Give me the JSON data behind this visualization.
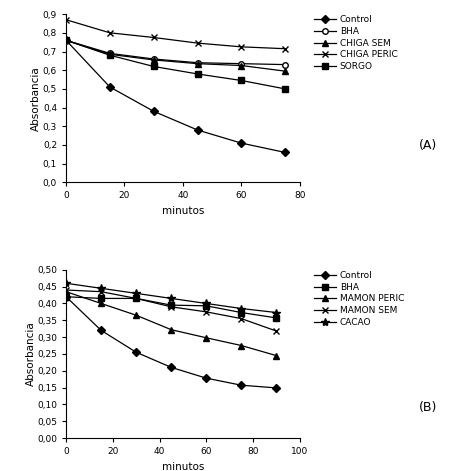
{
  "panel_A": {
    "title": "(A)",
    "xlabel": "minutos",
    "ylabel": "Absorbancia",
    "xlim": [
      0,
      80
    ],
    "ylim": [
      0,
      0.9
    ],
    "yticks": [
      0,
      0.1,
      0.2,
      0.3,
      0.4,
      0.5,
      0.6,
      0.7,
      0.8,
      0.9
    ],
    "xticks": [
      0,
      20,
      40,
      60,
      80
    ],
    "series": {
      "Control": {
        "x": [
          0,
          15,
          30,
          45,
          60,
          75
        ],
        "y": [
          0.76,
          0.51,
          0.38,
          0.28,
          0.21,
          0.16
        ],
        "marker": "D",
        "mfc": "black",
        "mec": "black",
        "ms": 4
      },
      "BHA": {
        "x": [
          0,
          15,
          30,
          45,
          60,
          75
        ],
        "y": [
          0.76,
          0.69,
          0.66,
          0.64,
          0.635,
          0.63
        ],
        "marker": "o",
        "mfc": "white",
        "mec": "black",
        "ms": 4
      },
      "CHIGA SEM": {
        "x": [
          0,
          15,
          30,
          45,
          60,
          75
        ],
        "y": [
          0.76,
          0.685,
          0.655,
          0.635,
          0.625,
          0.595
        ],
        "marker": "^",
        "mfc": "black",
        "mec": "black",
        "ms": 4
      },
      "CHIGA PERIC": {
        "x": [
          0,
          15,
          30,
          45,
          60,
          75
        ],
        "y": [
          0.87,
          0.8,
          0.775,
          0.745,
          0.725,
          0.715
        ],
        "marker": "x",
        "mfc": "black",
        "mec": "black",
        "ms": 5
      },
      "SORGO": {
        "x": [
          0,
          15,
          30,
          45,
          60,
          75
        ],
        "y": [
          0.76,
          0.68,
          0.62,
          0.58,
          0.545,
          0.5
        ],
        "marker": "s",
        "mfc": "black",
        "mec": "black",
        "ms": 4
      }
    }
  },
  "panel_B": {
    "title": "(B)",
    "xlabel": "minutos",
    "ylabel": "Absorbancia",
    "xlim": [
      0,
      100
    ],
    "ylim": [
      0.0,
      0.5
    ],
    "yticks": [
      0.0,
      0.05,
      0.1,
      0.15,
      0.2,
      0.25,
      0.3,
      0.35,
      0.4,
      0.45,
      0.5
    ],
    "xticks": [
      0,
      20,
      40,
      60,
      80,
      100
    ],
    "series": {
      "Control": {
        "x": [
          0,
          15,
          30,
          45,
          60,
          75,
          90
        ],
        "y": [
          0.42,
          0.32,
          0.255,
          0.21,
          0.178,
          0.157,
          0.149
        ],
        "marker": "D",
        "mfc": "black",
        "mec": "black",
        "ms": 4
      },
      "BHA": {
        "x": [
          0,
          15,
          30,
          45,
          60,
          75,
          90
        ],
        "y": [
          0.42,
          0.415,
          0.415,
          0.395,
          0.393,
          0.373,
          0.357
        ],
        "marker": "s",
        "mfc": "black",
        "mec": "black",
        "ms": 4
      },
      "MAMON PERIC": {
        "x": [
          0,
          15,
          30,
          45,
          60,
          75,
          90
        ],
        "y": [
          0.435,
          0.4,
          0.365,
          0.322,
          0.298,
          0.275,
          0.245
        ],
        "marker": "^",
        "mfc": "black",
        "mec": "black",
        "ms": 4
      },
      "MAMON SEM": {
        "x": [
          0,
          15,
          30,
          45,
          60,
          75,
          90
        ],
        "y": [
          0.44,
          0.435,
          0.415,
          0.39,
          0.375,
          0.355,
          0.318
        ],
        "marker": "x",
        "mfc": "black",
        "mec": "black",
        "ms": 5
      },
      "CACAO": {
        "x": [
          0,
          15,
          30,
          45,
          60,
          75,
          90
        ],
        "y": [
          0.46,
          0.445,
          0.43,
          0.415,
          0.4,
          0.385,
          0.373
        ],
        "marker": "*",
        "mfc": "black",
        "mec": "black",
        "ms": 6
      }
    }
  }
}
